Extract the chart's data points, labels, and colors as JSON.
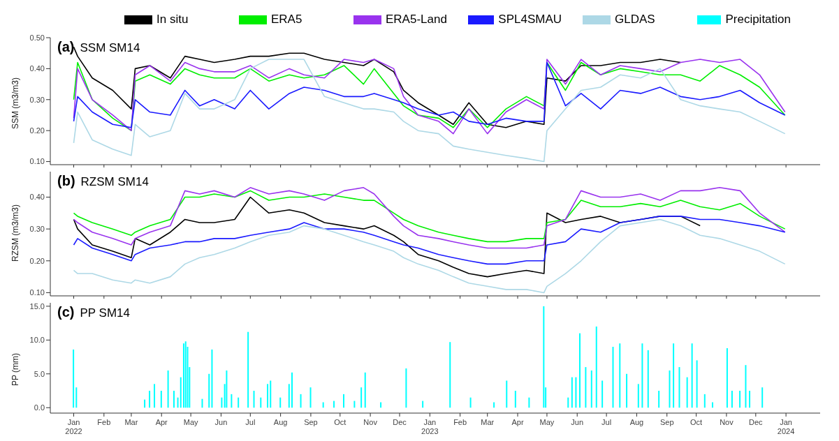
{
  "chart_data": [
    {
      "type": "line",
      "title": "(a) SSM SM14",
      "ylabel": "SSM (m3/m3)",
      "legend": "top",
      "tick_labels": "y",
      "xlim": [
        "2021-12-08",
        "2024-02-05"
      ],
      "ylim": [
        0.09,
        0.5
      ],
      "xticks": [
        {
          "value": "2022-01-01",
          "label": null
        },
        {
          "value": "2022-02-01",
          "label": null
        },
        {
          "value": "2022-03-01",
          "label": null
        },
        {
          "value": "2022-04-01",
          "label": null
        },
        {
          "value": "2022-05-01",
          "label": null
        },
        {
          "value": "2022-06-01",
          "label": null
        },
        {
          "value": "2022-07-01",
          "label": null
        },
        {
          "value": "2022-08-01",
          "label": null
        },
        {
          "value": "2022-09-01",
          "label": null
        },
        {
          "value": "2022-10-01",
          "label": null
        },
        {
          "value": "2022-11-01",
          "label": null
        },
        {
          "value": "2022-12-01",
          "label": null
        },
        {
          "value": "2023-01-01",
          "label": null
        },
        {
          "value": "2023-02-01",
          "label": null
        },
        {
          "value": "2023-03-01",
          "label": null
        },
        {
          "value": "2023-04-01",
          "label": null
        },
        {
          "value": "2023-05-01",
          "label": null
        },
        {
          "value": "2023-06-01",
          "label": null
        },
        {
          "value": "2023-07-01",
          "label": null
        },
        {
          "value": "2023-08-01",
          "label": null
        },
        {
          "value": "2023-09-01",
          "label": null
        },
        {
          "value": "2023-10-01",
          "label": null
        },
        {
          "value": "2023-11-01",
          "label": null
        },
        {
          "value": "2023-12-01",
          "label": null
        },
        {
          "value": "2024-01-01",
          "label": null
        }
      ],
      "yticks": [
        {
          "value": 0.1,
          "label": "0.10"
        },
        {
          "value": 0.2,
          "label": "0.20"
        },
        {
          "value": 0.3,
          "label": "0.30"
        },
        {
          "value": 0.4,
          "label": "0.40"
        },
        {
          "value": 0.5,
          "label": "0.50"
        }
      ],
      "x": [
        "2022-01-01",
        "2022-01-05",
        "2022-01-20",
        "2022-02-10",
        "2022-03-01",
        "2022-03-05",
        "2022-03-20",
        "2022-04-10",
        "2022-04-25",
        "2022-05-10",
        "2022-05-25",
        "2022-06-15",
        "2022-07-01",
        "2022-07-20",
        "2022-08-10",
        "2022-08-25",
        "2022-09-15",
        "2022-10-05",
        "2022-10-25",
        "2022-11-05",
        "2022-11-25",
        "2022-12-05",
        "2022-12-20",
        "2023-01-10",
        "2023-01-25",
        "2023-02-10",
        "2023-03-01",
        "2023-03-20",
        "2023-04-10",
        "2023-04-28",
        "2023-05-01",
        "2023-05-20",
        "2023-06-05",
        "2023-06-25",
        "2023-07-15",
        "2023-08-05",
        "2023-08-25",
        "2023-09-15",
        "2023-10-05",
        "2023-10-25",
        "2023-11-15",
        "2023-12-05",
        "2023-12-31"
      ],
      "series": [
        {
          "name": "In situ",
          "color": "#000000",
          "values": [
            0.47,
            0.44,
            0.37,
            0.33,
            0.27,
            0.4,
            0.41,
            0.37,
            0.44,
            0.43,
            0.42,
            0.43,
            0.44,
            0.44,
            0.45,
            0.45,
            0.43,
            0.42,
            0.41,
            0.43,
            0.39,
            0.33,
            0.29,
            0.25,
            0.22,
            0.29,
            0.22,
            0.21,
            0.23,
            0.22,
            0.37,
            0.36,
            0.41,
            0.41,
            0.42,
            0.42,
            0.43,
            0.42,
            null,
            null,
            null,
            null,
            null
          ]
        },
        {
          "name": "ERA5",
          "color": "#00ee00",
          "values": [
            0.3,
            0.42,
            0.3,
            0.24,
            0.2,
            0.36,
            0.38,
            0.35,
            0.4,
            0.38,
            0.37,
            0.37,
            0.4,
            0.36,
            0.38,
            0.37,
            0.38,
            0.41,
            0.35,
            0.4,
            0.32,
            0.28,
            0.25,
            0.24,
            0.21,
            0.27,
            0.21,
            0.27,
            0.31,
            0.28,
            0.42,
            0.33,
            0.42,
            0.38,
            0.4,
            0.39,
            0.38,
            0.38,
            0.36,
            0.41,
            0.38,
            0.34,
            0.25
          ]
        },
        {
          "name": "ERA5-Land",
          "color": "#9933ee",
          "values": [
            0.24,
            0.4,
            0.3,
            0.25,
            0.2,
            0.38,
            0.41,
            0.36,
            0.42,
            0.4,
            0.39,
            0.39,
            0.41,
            0.37,
            0.4,
            0.38,
            0.37,
            0.43,
            0.42,
            0.43,
            0.4,
            0.31,
            0.25,
            0.23,
            0.19,
            0.27,
            0.19,
            0.26,
            0.3,
            0.27,
            0.43,
            0.35,
            0.43,
            0.38,
            0.41,
            0.4,
            0.39,
            0.42,
            0.43,
            0.42,
            0.43,
            0.38,
            0.26
          ]
        },
        {
          "name": "SPL4SMAU",
          "color": "#1a1aff",
          "values": [
            0.23,
            0.31,
            0.26,
            0.22,
            0.21,
            0.3,
            0.26,
            0.25,
            0.33,
            0.28,
            0.3,
            0.27,
            0.33,
            0.27,
            0.32,
            0.34,
            0.33,
            0.31,
            0.31,
            0.32,
            0.3,
            0.29,
            0.27,
            0.25,
            0.26,
            0.23,
            0.22,
            0.24,
            0.23,
            0.23,
            0.42,
            0.28,
            0.32,
            0.27,
            0.33,
            0.32,
            0.34,
            0.31,
            0.3,
            0.31,
            0.33,
            0.29,
            0.25
          ]
        },
        {
          "name": "GLDAS",
          "color": "#add8e6",
          "values": [
            0.16,
            0.26,
            0.17,
            0.14,
            0.12,
            0.22,
            0.18,
            0.2,
            0.32,
            0.27,
            0.27,
            0.3,
            0.4,
            0.43,
            0.43,
            0.43,
            0.31,
            0.29,
            0.27,
            0.27,
            0.26,
            0.23,
            0.2,
            0.19,
            0.15,
            0.14,
            0.13,
            0.12,
            0.11,
            0.1,
            0.2,
            0.27,
            0.33,
            0.34,
            0.38,
            0.37,
            0.4,
            0.3,
            0.28,
            0.27,
            0.26,
            0.23,
            0.19
          ]
        }
      ]
    },
    {
      "type": "line",
      "title": "(b) RZSM SM14",
      "ylabel": "RZSM (m3/m3)",
      "tick_labels": "y",
      "xlim": [
        "2021-12-08",
        "2024-02-05"
      ],
      "ylim": [
        0.09,
        0.48
      ],
      "xticks": [
        {
          "value": "2022-01-01",
          "label": null
        },
        {
          "value": "2022-02-01",
          "label": null
        },
        {
          "value": "2022-03-01",
          "label": null
        },
        {
          "value": "2022-04-01",
          "label": null
        },
        {
          "value": "2022-05-01",
          "label": null
        },
        {
          "value": "2022-06-01",
          "label": null
        },
        {
          "value": "2022-07-01",
          "label": null
        },
        {
          "value": "2022-08-01",
          "label": null
        },
        {
          "value": "2022-09-01",
          "label": null
        },
        {
          "value": "2022-10-01",
          "label": null
        },
        {
          "value": "2022-11-01",
          "label": null
        },
        {
          "value": "2022-12-01",
          "label": null
        },
        {
          "value": "2023-01-01",
          "label": null
        },
        {
          "value": "2023-02-01",
          "label": null
        },
        {
          "value": "2023-03-01",
          "label": null
        },
        {
          "value": "2023-04-01",
          "label": null
        },
        {
          "value": "2023-05-01",
          "label": null
        },
        {
          "value": "2023-06-01",
          "label": null
        },
        {
          "value": "2023-07-01",
          "label": null
        },
        {
          "value": "2023-08-01",
          "label": null
        },
        {
          "value": "2023-09-01",
          "label": null
        },
        {
          "value": "2023-10-01",
          "label": null
        },
        {
          "value": "2023-11-01",
          "label": null
        },
        {
          "value": "2023-12-01",
          "label": null
        },
        {
          "value": "2024-01-01",
          "label": null
        }
      ],
      "yticks": [
        {
          "value": 0.1,
          "label": "0.10"
        },
        {
          "value": 0.2,
          "label": "0.20"
        },
        {
          "value": 0.3,
          "label": "0.30"
        },
        {
          "value": 0.4,
          "label": "0.40"
        }
      ],
      "x": [
        "2022-01-01",
        "2022-01-05",
        "2022-01-20",
        "2022-02-10",
        "2022-03-01",
        "2022-03-05",
        "2022-03-20",
        "2022-04-10",
        "2022-04-25",
        "2022-05-10",
        "2022-05-25",
        "2022-06-15",
        "2022-07-01",
        "2022-07-20",
        "2022-08-10",
        "2022-08-25",
        "2022-09-15",
        "2022-10-05",
        "2022-10-25",
        "2022-11-05",
        "2022-11-25",
        "2022-12-05",
        "2022-12-20",
        "2023-01-10",
        "2023-01-25",
        "2023-02-10",
        "2023-03-01",
        "2023-03-20",
        "2023-04-10",
        "2023-04-28",
        "2023-05-01",
        "2023-05-20",
        "2023-06-05",
        "2023-06-25",
        "2023-07-15",
        "2023-08-05",
        "2023-08-25",
        "2023-09-15",
        "2023-10-05",
        "2023-10-25",
        "2023-11-15",
        "2023-12-05",
        "2023-12-31"
      ],
      "series": [
        {
          "color": "#000000",
          "values": [
            0.33,
            0.3,
            0.25,
            0.23,
            0.21,
            0.27,
            0.25,
            0.29,
            0.33,
            0.32,
            0.32,
            0.33,
            0.4,
            0.35,
            0.36,
            0.35,
            0.32,
            0.31,
            0.3,
            0.31,
            0.28,
            0.26,
            0.22,
            0.2,
            0.18,
            0.16,
            0.15,
            0.16,
            0.17,
            0.16,
            0.35,
            0.32,
            0.33,
            0.34,
            0.32,
            0.33,
            0.34,
            0.34,
            0.31,
            null,
            null,
            null,
            null
          ]
        },
        {
          "color": "#00ee00",
          "values": [
            0.35,
            0.34,
            0.32,
            0.3,
            0.28,
            0.29,
            0.31,
            0.33,
            0.4,
            0.4,
            0.41,
            0.4,
            0.42,
            0.39,
            0.4,
            0.4,
            0.41,
            0.4,
            0.39,
            0.39,
            0.35,
            0.33,
            0.31,
            0.29,
            0.28,
            0.27,
            0.26,
            0.26,
            0.27,
            0.27,
            0.32,
            0.33,
            0.39,
            0.37,
            0.37,
            0.38,
            0.37,
            0.39,
            0.37,
            0.36,
            0.38,
            0.34,
            0.3
          ]
        },
        {
          "color": "#9933ee",
          "values": [
            0.33,
            0.32,
            0.29,
            0.27,
            0.25,
            0.27,
            0.29,
            0.31,
            0.42,
            0.41,
            0.42,
            0.4,
            0.43,
            0.41,
            0.42,
            0.41,
            0.39,
            0.42,
            0.43,
            0.41,
            0.34,
            0.31,
            0.28,
            0.27,
            0.26,
            0.25,
            0.24,
            0.24,
            0.24,
            0.25,
            0.31,
            0.33,
            0.42,
            0.4,
            0.4,
            0.41,
            0.39,
            0.42,
            0.42,
            0.43,
            0.42,
            0.35,
            0.29
          ]
        },
        {
          "color": "#1a1aff",
          "values": [
            0.25,
            0.27,
            0.24,
            0.22,
            0.2,
            0.22,
            0.24,
            0.25,
            0.26,
            0.26,
            0.27,
            0.27,
            0.28,
            0.29,
            0.3,
            0.32,
            0.3,
            0.3,
            0.29,
            0.28,
            0.26,
            0.25,
            0.24,
            0.22,
            0.21,
            0.2,
            0.19,
            0.19,
            0.2,
            0.2,
            0.25,
            0.26,
            0.3,
            0.29,
            0.32,
            0.33,
            0.34,
            0.34,
            0.33,
            0.33,
            0.32,
            0.31,
            0.29
          ]
        },
        {
          "color": "#add8e6",
          "values": [
            0.17,
            0.16,
            0.16,
            0.14,
            0.13,
            0.14,
            0.13,
            0.15,
            0.19,
            0.21,
            0.22,
            0.24,
            0.26,
            0.28,
            0.29,
            0.31,
            0.3,
            0.28,
            0.26,
            0.25,
            0.23,
            0.21,
            0.19,
            0.17,
            0.15,
            0.13,
            0.12,
            0.11,
            0.11,
            0.1,
            0.12,
            0.16,
            0.2,
            0.26,
            0.31,
            0.32,
            0.33,
            0.31,
            0.28,
            0.27,
            0.25,
            0.23,
            0.19
          ]
        }
      ]
    },
    {
      "type": "bar",
      "title": "(c) PP SM14",
      "ylabel": "PP (mm)",
      "legend": "top",
      "xlim": [
        "2021-12-08",
        "2024-02-05"
      ],
      "ylim": [
        -0.8,
        15.5
      ],
      "xticks": [
        {
          "value": "2022-01-01",
          "label": "Jan\n2022"
        },
        {
          "value": "2022-02-01",
          "label": "Feb"
        },
        {
          "value": "2022-03-01",
          "label": "Mar"
        },
        {
          "value": "2022-04-01",
          "label": "Apr"
        },
        {
          "value": "2022-05-01",
          "label": "May"
        },
        {
          "value": "2022-06-01",
          "label": "Jun"
        },
        {
          "value": "2022-07-01",
          "label": "Jul"
        },
        {
          "value": "2022-08-01",
          "label": "Aug"
        },
        {
          "value": "2022-09-01",
          "label": "Sep"
        },
        {
          "value": "2022-10-01",
          "label": "Oct"
        },
        {
          "value": "2022-11-01",
          "label": "Nov"
        },
        {
          "value": "2022-12-01",
          "label": "Dec"
        },
        {
          "value": "2023-01-01",
          "label": "Jan\n2023"
        },
        {
          "value": "2023-02-01",
          "label": "Feb"
        },
        {
          "value": "2023-03-01",
          "label": "Mar"
        },
        {
          "value": "2023-04-01",
          "label": "Apr"
        },
        {
          "value": "2023-05-01",
          "label": "May"
        },
        {
          "value": "2023-06-01",
          "label": "Jun"
        },
        {
          "value": "2023-07-01",
          "label": "Jul"
        },
        {
          "value": "2023-08-01",
          "label": "Aug"
        },
        {
          "value": "2023-09-01",
          "label": "Sep"
        },
        {
          "value": "2023-10-01",
          "label": "Oct"
        },
        {
          "value": "2023-11-01",
          "label": "Nov"
        },
        {
          "value": "2023-12-01",
          "label": "Dec"
        },
        {
          "value": "2024-01-01",
          "label": "Jan\n2024"
        }
      ],
      "yticks": [
        {
          "value": 0,
          "label": "0.0"
        },
        {
          "value": 5,
          "label": "5.0"
        },
        {
          "value": 10,
          "label": "10.0"
        },
        {
          "value": 15,
          "label": "15.0"
        }
      ],
      "x": [
        "2022-01-01",
        "2022-01-04",
        "2022-03-15",
        "2022-03-20",
        "2022-03-25",
        "2022-04-01",
        "2022-04-08",
        "2022-04-14",
        "2022-04-18",
        "2022-04-21",
        "2022-04-24",
        "2022-04-26",
        "2022-04-28",
        "2022-04-30",
        "2022-05-13",
        "2022-05-20",
        "2022-05-23",
        "2022-06-02",
        "2022-06-05",
        "2022-06-07",
        "2022-06-12",
        "2022-06-19",
        "2022-06-29",
        "2022-07-05",
        "2022-07-12",
        "2022-07-19",
        "2022-07-22",
        "2022-08-01",
        "2022-08-10",
        "2022-08-13",
        "2022-08-22",
        "2022-09-01",
        "2022-09-14",
        "2022-09-25",
        "2022-10-05",
        "2022-10-16",
        "2022-10-23",
        "2022-10-27",
        "2022-11-12",
        "2022-12-08",
        "2022-12-25",
        "2023-01-22",
        "2023-02-12",
        "2023-03-08",
        "2023-03-21",
        "2023-03-30",
        "2023-04-13",
        "2023-04-28",
        "2023-04-30",
        "2023-05-23",
        "2023-05-27",
        "2023-05-31",
        "2023-06-04",
        "2023-06-10",
        "2023-06-16",
        "2023-06-21",
        "2023-06-27",
        "2023-07-08",
        "2023-07-15",
        "2023-07-22",
        "2023-08-03",
        "2023-08-07",
        "2023-08-13",
        "2023-08-24",
        "2023-09-04",
        "2023-09-08",
        "2023-09-14",
        "2023-09-22",
        "2023-09-27",
        "2023-10-02",
        "2023-10-10",
        "2023-10-18",
        "2023-11-02",
        "2023-11-07",
        "2023-11-15",
        "2023-11-21",
        "2023-11-25",
        "2023-12-08"
      ],
      "series": [
        {
          "name": "Precipitation",
          "color": "#00ffff",
          "values": [
            8.6,
            3.0,
            1.2,
            2.5,
            3.5,
            2.5,
            5.5,
            2.5,
            1.5,
            4.5,
            9.5,
            9.8,
            9.0,
            6.0,
            1.3,
            5.0,
            8.6,
            1.5,
            3.5,
            5.5,
            2.0,
            1.5,
            11.2,
            2.5,
            1.5,
            3.5,
            4.0,
            1.5,
            3.5,
            5.2,
            2.0,
            3.0,
            0.8,
            1.0,
            2.0,
            1.0,
            3.0,
            5.2,
            0.8,
            5.8,
            1.0,
            9.7,
            1.5,
            0.8,
            4.0,
            2.5,
            1.5,
            15.0,
            3.0,
            1.5,
            4.5,
            4.5,
            11.0,
            6.0,
            5.5,
            12.0,
            4.0,
            9.0,
            9.5,
            5.0,
            3.5,
            9.5,
            8.5,
            2.5,
            5.5,
            9.5,
            6.0,
            4.5,
            9.5,
            7.0,
            2.0,
            0.8,
            8.8,
            2.5,
            2.5,
            6.3,
            2.5,
            3.0
          ]
        }
      ]
    }
  ]
}
